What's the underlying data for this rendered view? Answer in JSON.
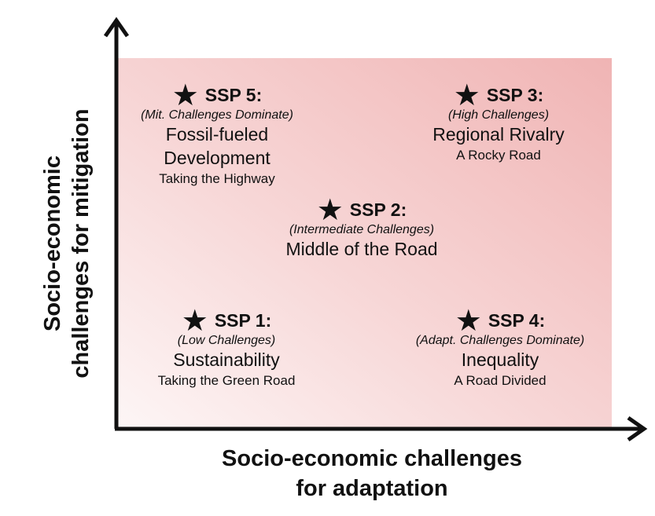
{
  "axes": {
    "y_label_line1": "Socio-economic",
    "y_label_line2": "challenges for mitigation",
    "x_label_line1": "Socio-economic challenges",
    "x_label_line2": "for adaptation"
  },
  "colors": {
    "panel_light": "#fdf6f6",
    "panel_dark": "#f0b4b4",
    "axis": "#111111"
  },
  "icons": {
    "marker": "star-icon",
    "axis_arrow": "arrow-icon"
  },
  "scenarios": {
    "ssp5": {
      "star": "★",
      "code": "SSP 5:",
      "challenges": "(Mit. Challenges Dominate)",
      "name_line1": "Fossil-fueled",
      "name_line2": "Development",
      "road": "Taking the Highway"
    },
    "ssp3": {
      "star": "★",
      "code": "SSP 3:",
      "challenges": "(High Challenges)",
      "name_line1": "Regional Rivalry",
      "road": "A Rocky Road"
    },
    "ssp2": {
      "star": "★",
      "code": "SSP 2:",
      "challenges": "(Intermediate Challenges)",
      "name_line1": "Middle of the Road"
    },
    "ssp1": {
      "star": "★",
      "code": "SSP 1:",
      "challenges": "(Low Challenges)",
      "name_line1": "Sustainability",
      "road": "Taking the Green Road"
    },
    "ssp4": {
      "star": "★",
      "code": "SSP 4:",
      "challenges": "(Adapt. Challenges Dominate)",
      "name_line1": "Inequality",
      "road": "A Road Divided"
    }
  }
}
